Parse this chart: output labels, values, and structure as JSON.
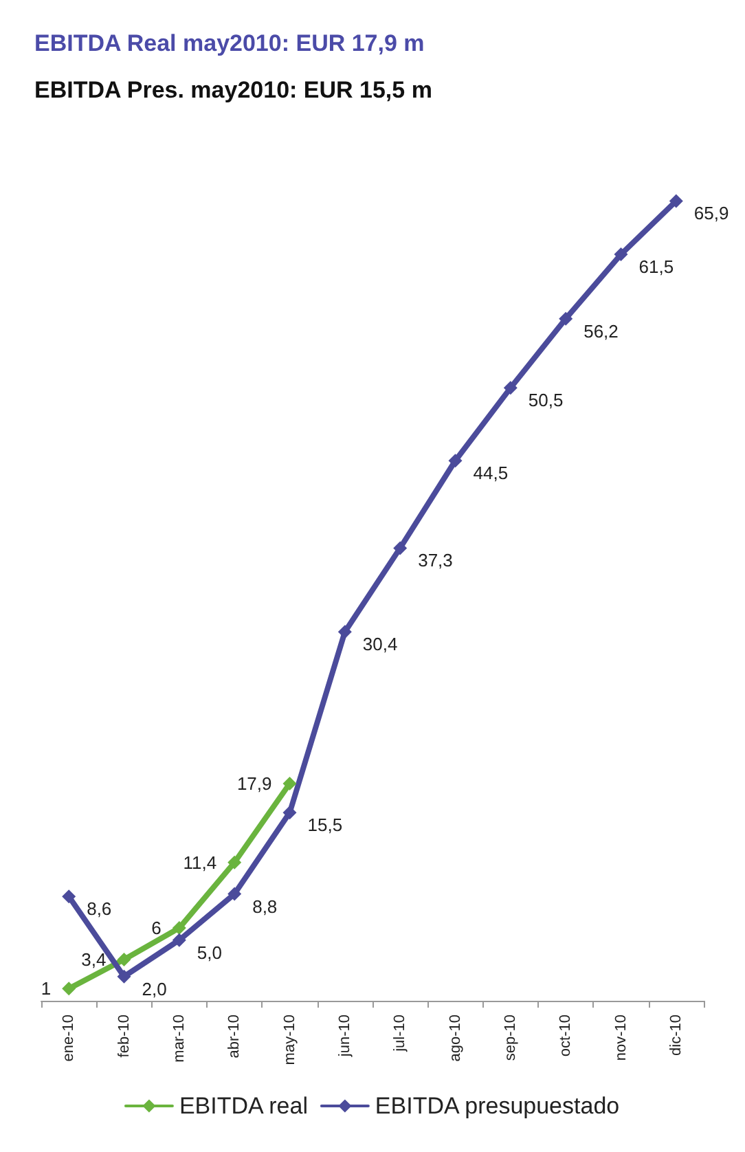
{
  "chart_data": {
    "type": "line",
    "title": "EBITDA Real may2010: EUR 17,9 m",
    "subtitle": "EBITDA Pres. may2010: EUR 15,5 m",
    "categories": [
      "ene-10",
      "feb-10",
      "mar-10",
      "abr-10",
      "may-10",
      "jun-10",
      "jul-10",
      "ago-10",
      "sep-10",
      "oct-10",
      "nov-10",
      "dic-10"
    ],
    "series": [
      {
        "name": "EBITDA real",
        "color": "#6ab43e",
        "values": [
          1,
          3.4,
          6,
          11.4,
          17.9,
          null,
          null,
          null,
          null,
          null,
          null,
          null
        ],
        "value_labels": [
          "1",
          "3,4",
          "6",
          "11,4",
          "17,9",
          null,
          null,
          null,
          null,
          null,
          null,
          null
        ]
      },
      {
        "name": "EBITDA presupuestado",
        "color": "#4b4b9b",
        "values": [
          8.6,
          2.0,
          5.0,
          8.8,
          15.5,
          30.4,
          37.3,
          44.5,
          50.5,
          56.2,
          61.5,
          65.9
        ],
        "value_labels": [
          "8,6",
          "2,0",
          "5,0",
          "8,8",
          "15,5",
          "30,4",
          "37,3",
          "44,5",
          "50,5",
          "56,2",
          "61,5",
          "65,9"
        ]
      }
    ],
    "marker": "diamond",
    "legend": "bottom",
    "grid": false
  }
}
